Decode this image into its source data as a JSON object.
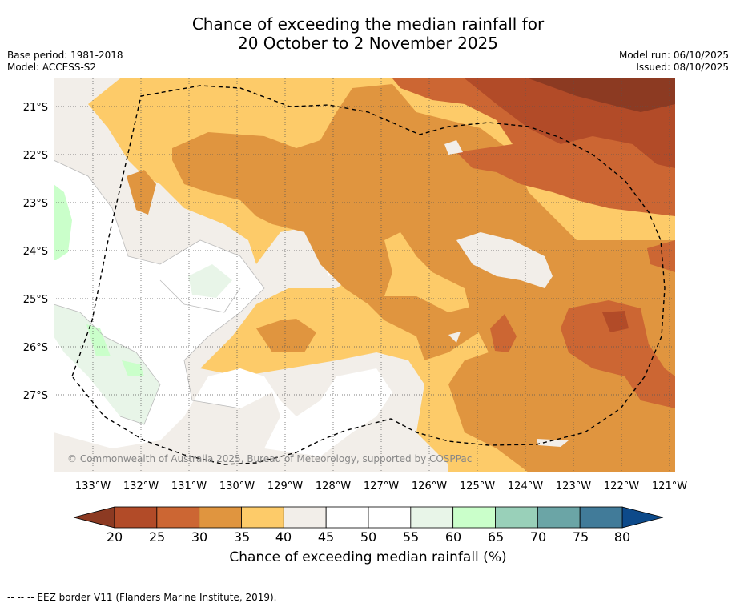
{
  "title_line1": "Chance of exceeding the median rainfall for",
  "title_line2": "20 October to 2 November 2025",
  "base_period": "Base period: 1981-2018",
  "model": "Model: ACCESS-S2",
  "model_run": "Model run: 06/10/2025",
  "issued": "Issued: 08/10/2025",
  "copyright": "© Commonwealth of Australia 2025, Bureau of Meteorology, supported by COSPPac",
  "lon_ticks": [
    "133°W",
    "132°W",
    "131°W",
    "130°W",
    "129°W",
    "128°W",
    "127°W",
    "126°W",
    "125°W",
    "124°W",
    "123°W",
    "122°W",
    "121°W"
  ],
  "lat_ticks": [
    "21°S",
    "22°S",
    "23°S",
    "24°S",
    "25°S",
    "26°S",
    "27°S"
  ],
  "colorbar": {
    "label": "Chance of exceeding median rainfall (%)",
    "ticks": [
      "20",
      "25",
      "30",
      "35",
      "40",
      "45",
      "50",
      "55",
      "60",
      "65",
      "70",
      "75",
      "80"
    ],
    "low_color": "#8c3a22",
    "high_color": "#0d4a8a",
    "bins": [
      "#b24b28",
      "#cc6633",
      "#e0953f",
      "#fdcb69",
      "#f2eee9",
      "#ffffff",
      "#ffffff",
      "#e8f5e8",
      "#caffca",
      "#99d0b9",
      "#6ba5a6",
      "#417b99"
    ]
  },
  "footer": "--  --  -- EEZ border V11 (Flanders Marine Institute, 2019)."
}
